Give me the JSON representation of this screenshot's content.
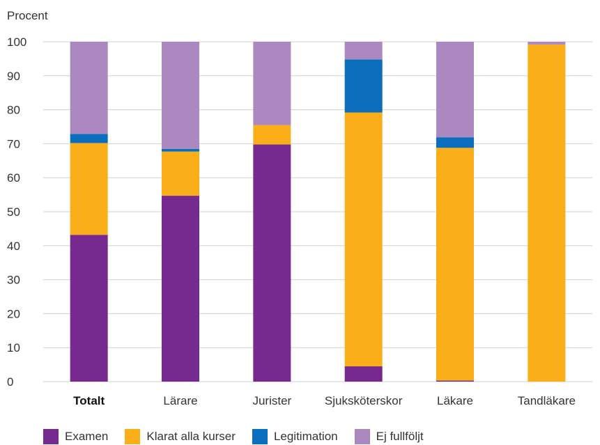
{
  "chart_data": {
    "type": "bar",
    "stacked": true,
    "unit_label": "Procent",
    "ylim": [
      0,
      100
    ],
    "yticks": [
      0,
      10,
      20,
      30,
      40,
      50,
      60,
      70,
      80,
      90,
      100
    ],
    "grid": true,
    "legend_position": "bottom",
    "categories": [
      "Totalt",
      "Lärare",
      "Jurister",
      "Sjuksköterskor",
      "Läkare",
      "Tandläkare"
    ],
    "bold_categories": [
      "Totalt"
    ],
    "series": [
      {
        "name": "Examen",
        "color": "#762a8f",
        "values": [
          43.2,
          54.7,
          69.8,
          4.5,
          0.3,
          0
        ]
      },
      {
        "name": "Klarat alla kurser",
        "color": "#f9ae1a",
        "values": [
          27.0,
          13.0,
          5.7,
          74.7,
          68.5,
          99.2
        ]
      },
      {
        "name": "Legitimation",
        "color": "#0a6ebd",
        "values": [
          2.7,
          0.8,
          0,
          15.6,
          3.1,
          0
        ]
      },
      {
        "name": "Ej fullföljt",
        "color": "#ab88c0",
        "values": [
          27.1,
          31.5,
          24.5,
          5.2,
          28.1,
          0.8
        ]
      }
    ]
  }
}
